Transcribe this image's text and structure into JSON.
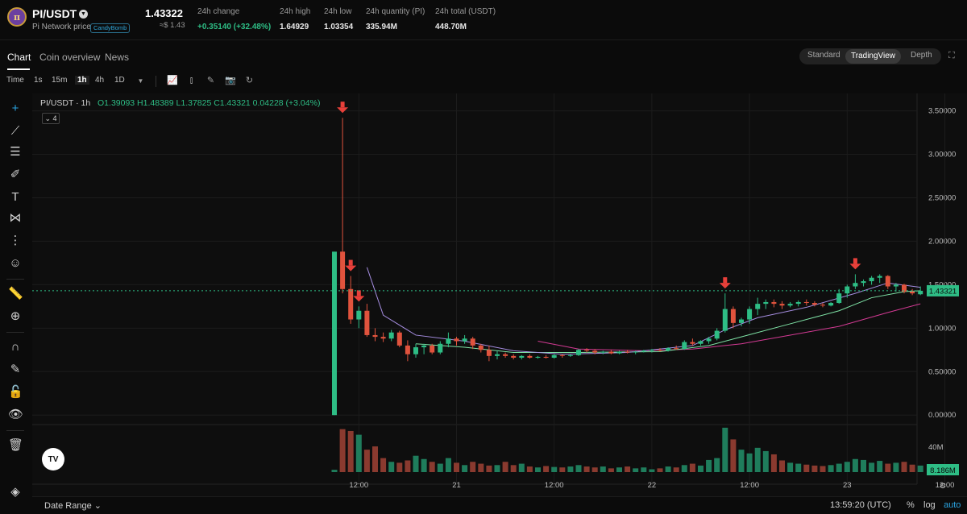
{
  "header": {
    "pair": "PI/USDT",
    "logo_letter": "π",
    "subtitle": "Pi Network price",
    "tag": "CandyBomb",
    "last_price": "1.43322",
    "usd_price": "≈$ 1.43",
    "stats": [
      {
        "label": "24h change",
        "value": "+0.35140 (+32.48%)",
        "positive": true
      },
      {
        "label": "24h high",
        "value": "1.64929"
      },
      {
        "label": "24h low",
        "value": "1.03354"
      },
      {
        "label": "24h quantity (PI)",
        "value": "335.94M"
      },
      {
        "label": "24h total (USDT)",
        "value": "448.70M"
      }
    ]
  },
  "tabs": [
    "Chart",
    "Coin overview",
    "News"
  ],
  "active_tab": "Chart",
  "view_modes": [
    "Standard",
    "TradingView",
    "Depth"
  ],
  "active_view_mode": "TradingView",
  "toolbar": {
    "time_label": "Time",
    "intervals": [
      "1s",
      "15m",
      "1h",
      "4h",
      "1D"
    ],
    "active_interval": "1h"
  },
  "legend": {
    "symbol": "PI/USDT · 1h",
    "ohlc": "O1.39093 H1.48389 L1.37825 C1.43321 0.04228 (+3.04%)",
    "collapse_count": "4"
  },
  "colors": {
    "up": "#2ebd85",
    "down": "#e0533d",
    "volume_up": "#1f7d5c",
    "volume_down": "#8a3a2f",
    "ma_fast": "#a58de0",
    "ma_mid": "#7fe3a6",
    "ma_slow": "#d43a94",
    "marker": "#e8403a",
    "price_line": "#2ebd85"
  },
  "chart_data": {
    "type": "candlestick",
    "price_axis": [
      "3.50000",
      "3.00000",
      "2.50000",
      "2.00000",
      "1.50000",
      "1.00000",
      "0.50000",
      "0.00000"
    ],
    "ylim": [
      -0.1,
      3.7
    ],
    "volume_axis_label": "40M",
    "current_price_label": "1.43321",
    "current_volume_label": "8.186M",
    "time_axis": [
      {
        "label": "12:00",
        "index": 3
      },
      {
        "label": "21",
        "index": 15
      },
      {
        "label": "12:00",
        "index": 27
      },
      {
        "label": "22",
        "index": 39
      },
      {
        "label": "12:00",
        "index": 51
      },
      {
        "label": "23",
        "index": 63
      },
      {
        "label": "12:00",
        "index": 75
      },
      {
        "label": "21:00",
        "index": 84
      }
    ],
    "candles": [
      [
        0.0,
        1.88,
        0.0,
        1.88
      ],
      [
        1.88,
        3.42,
        1.4,
        1.45
      ],
      [
        1.45,
        1.6,
        1.05,
        1.1
      ],
      [
        1.1,
        1.25,
        1.0,
        1.2
      ],
      [
        1.2,
        1.28,
        0.9,
        0.92
      ],
      [
        0.92,
        1.0,
        0.85,
        0.9
      ],
      [
        0.9,
        0.95,
        0.84,
        0.88
      ],
      [
        0.88,
        0.98,
        0.85,
        0.95
      ],
      [
        0.95,
        0.97,
        0.78,
        0.8
      ],
      [
        0.8,
        0.86,
        0.62,
        0.7
      ],
      [
        0.7,
        0.82,
        0.66,
        0.78
      ],
      [
        0.78,
        0.82,
        0.7,
        0.8
      ],
      [
        0.8,
        0.82,
        0.7,
        0.72
      ],
      [
        0.72,
        0.85,
        0.7,
        0.82
      ],
      [
        0.82,
        0.95,
        0.78,
        0.88
      ],
      [
        0.88,
        0.9,
        0.8,
        0.85
      ],
      [
        0.85,
        0.92,
        0.82,
        0.88
      ],
      [
        0.88,
        0.9,
        0.76,
        0.8
      ],
      [
        0.8,
        0.82,
        0.72,
        0.75
      ],
      [
        0.75,
        0.8,
        0.62,
        0.68
      ],
      [
        0.68,
        0.74,
        0.64,
        0.7
      ],
      [
        0.7,
        0.72,
        0.66,
        0.68
      ],
      [
        0.68,
        0.7,
        0.64,
        0.66
      ],
      [
        0.66,
        0.69,
        0.64,
        0.68
      ],
      [
        0.68,
        0.7,
        0.65,
        0.66
      ],
      [
        0.66,
        0.68,
        0.65,
        0.67
      ],
      [
        0.67,
        0.69,
        0.65,
        0.66
      ],
      [
        0.66,
        0.7,
        0.65,
        0.69
      ],
      [
        0.69,
        0.7,
        0.66,
        0.68
      ],
      [
        0.68,
        0.7,
        0.67,
        0.69
      ],
      [
        0.69,
        0.76,
        0.68,
        0.75
      ],
      [
        0.75,
        0.77,
        0.72,
        0.74
      ],
      [
        0.74,
        0.76,
        0.7,
        0.72
      ],
      [
        0.72,
        0.74,
        0.7,
        0.73
      ],
      [
        0.73,
        0.75,
        0.7,
        0.71
      ],
      [
        0.71,
        0.74,
        0.7,
        0.73
      ],
      [
        0.73,
        0.75,
        0.71,
        0.72
      ],
      [
        0.72,
        0.74,
        0.7,
        0.73
      ],
      [
        0.73,
        0.75,
        0.72,
        0.74
      ],
      [
        0.74,
        0.76,
        0.72,
        0.75
      ],
      [
        0.75,
        0.77,
        0.73,
        0.74
      ],
      [
        0.74,
        0.78,
        0.73,
        0.77
      ],
      [
        0.77,
        0.8,
        0.75,
        0.76
      ],
      [
        0.76,
        0.86,
        0.75,
        0.84
      ],
      [
        0.84,
        0.88,
        0.8,
        0.82
      ],
      [
        0.82,
        0.86,
        0.8,
        0.85
      ],
      [
        0.85,
        0.9,
        0.82,
        0.88
      ],
      [
        0.88,
        1.0,
        0.86,
        0.97
      ],
      [
        0.97,
        1.4,
        0.95,
        1.22
      ],
      [
        1.22,
        1.25,
        1.0,
        1.06
      ],
      [
        1.06,
        1.12,
        1.02,
        1.1
      ],
      [
        1.1,
        1.25,
        1.05,
        1.22
      ],
      [
        1.22,
        1.35,
        1.15,
        1.28
      ],
      [
        1.28,
        1.33,
        1.22,
        1.3
      ],
      [
        1.3,
        1.33,
        1.24,
        1.28
      ],
      [
        1.28,
        1.31,
        1.22,
        1.26
      ],
      [
        1.26,
        1.3,
        1.24,
        1.28
      ],
      [
        1.28,
        1.32,
        1.25,
        1.3
      ],
      [
        1.3,
        1.33,
        1.26,
        1.29
      ],
      [
        1.29,
        1.31,
        1.25,
        1.27
      ],
      [
        1.27,
        1.29,
        1.24,
        1.26
      ],
      [
        1.26,
        1.3,
        1.25,
        1.29
      ],
      [
        1.29,
        1.45,
        1.28,
        1.4
      ],
      [
        1.4,
        1.5,
        1.35,
        1.48
      ],
      [
        1.48,
        1.62,
        1.45,
        1.52
      ],
      [
        1.52,
        1.56,
        1.48,
        1.54
      ],
      [
        1.54,
        1.6,
        1.5,
        1.58
      ],
      [
        1.58,
        1.62,
        1.52,
        1.6
      ],
      [
        1.6,
        1.61,
        1.45,
        1.48
      ],
      [
        1.48,
        1.52,
        1.42,
        1.5
      ],
      [
        1.5,
        1.51,
        1.4,
        1.42
      ],
      [
        1.42,
        1.45,
        1.38,
        1.4
      ],
      [
        1.39,
        1.48,
        1.38,
        1.43
      ]
    ],
    "volume": [
      5,
      92,
      88,
      80,
      48,
      55,
      30,
      22,
      20,
      25,
      35,
      28,
      22,
      18,
      30,
      20,
      15,
      22,
      18,
      14,
      15,
      22,
      15,
      18,
      12,
      10,
      13,
      11,
      10,
      12,
      15,
      12,
      10,
      12,
      8,
      10,
      12,
      8,
      10,
      6,
      8,
      12,
      10,
      15,
      18,
      14,
      26,
      30,
      95,
      70,
      48,
      40,
      52,
      45,
      38,
      25,
      20,
      18,
      16,
      14,
      13,
      15,
      18,
      22,
      28,
      26,
      20,
      24,
      18,
      20,
      22,
      16,
      14
    ],
    "markers_at_index": [
      1,
      2,
      3,
      48,
      64
    ],
    "ma_fast": [
      [
        4,
        1.7
      ],
      [
        6,
        1.15
      ],
      [
        10,
        0.92
      ],
      [
        16,
        0.85
      ],
      [
        22,
        0.74
      ],
      [
        28,
        0.7
      ],
      [
        36,
        0.72
      ],
      [
        44,
        0.8
      ],
      [
        48,
        0.98
      ],
      [
        52,
        1.12
      ],
      [
        58,
        1.24
      ],
      [
        64,
        1.4
      ],
      [
        68,
        1.52
      ],
      [
        72,
        1.47
      ]
    ],
    "ma_mid": [
      [
        10,
        0.82
      ],
      [
        16,
        0.78
      ],
      [
        22,
        0.72
      ],
      [
        30,
        0.72
      ],
      [
        40,
        0.73
      ],
      [
        46,
        0.8
      ],
      [
        50,
        0.9
      ],
      [
        56,
        1.05
      ],
      [
        62,
        1.2
      ],
      [
        66,
        1.35
      ],
      [
        70,
        1.42
      ],
      [
        72,
        1.43
      ]
    ],
    "ma_slow": [
      [
        25,
        0.85
      ],
      [
        30,
        0.76
      ],
      [
        38,
        0.74
      ],
      [
        44,
        0.76
      ],
      [
        50,
        0.82
      ],
      [
        56,
        0.92
      ],
      [
        62,
        1.02
      ],
      [
        68,
        1.18
      ],
      [
        72,
        1.28
      ]
    ]
  },
  "bottom": {
    "date_range_label": "Date Range",
    "clock": "13:59:20 (UTC)",
    "percent_label": "%",
    "log_label": "log",
    "auto_label": "auto"
  }
}
